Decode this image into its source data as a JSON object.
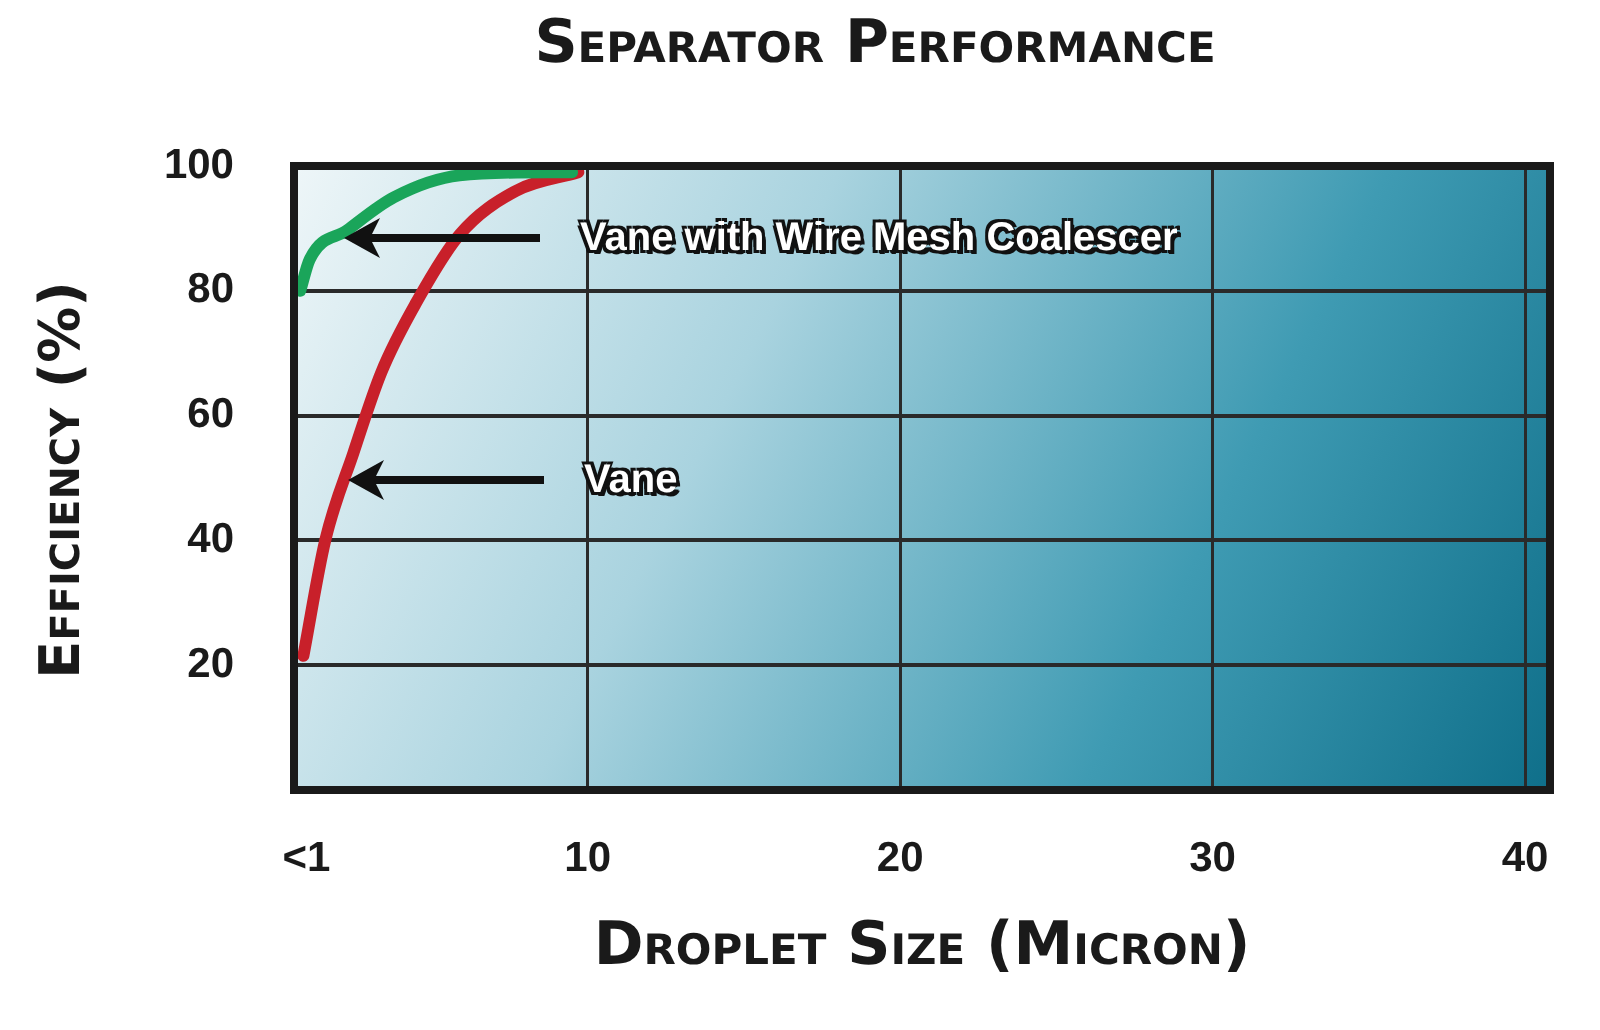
{
  "chart_data": {
    "type": "line",
    "title": "Separator Performance",
    "xlabel": "Droplet Size (Micron)",
    "ylabel": "Efficiency (%)",
    "xlim": [
      0.6,
      40.8
    ],
    "xticks": [
      {
        "value": 1,
        "label": "<1"
      },
      10,
      20,
      30,
      40
    ],
    "ylim": [
      0,
      100
    ],
    "yticks": [
      20,
      40,
      60,
      80,
      100
    ],
    "grid": true,
    "legend": false,
    "marker": "none",
    "line_style": "solid",
    "series": [
      {
        "color": "#1aa55a",
        "x": [
          0.8,
          1.1,
          2.3,
          3.8,
          5.9,
          8.7,
          9.5
        ],
        "values": [
          80,
          85,
          89.7,
          95,
          98.5,
          99,
          99
        ]
      },
      {
        "color": "#c8202a",
        "x": [
          0.9,
          1.6,
          2.5,
          3.4,
          4.5,
          5.9,
          7.7,
          9.7
        ],
        "values": [
          21.5,
          40,
          54,
          67,
          78,
          89,
          96,
          99
        ]
      }
    ],
    "annotations": [
      "Vane with Wire Mesh Coalescer",
      "Vane"
    ]
  }
}
